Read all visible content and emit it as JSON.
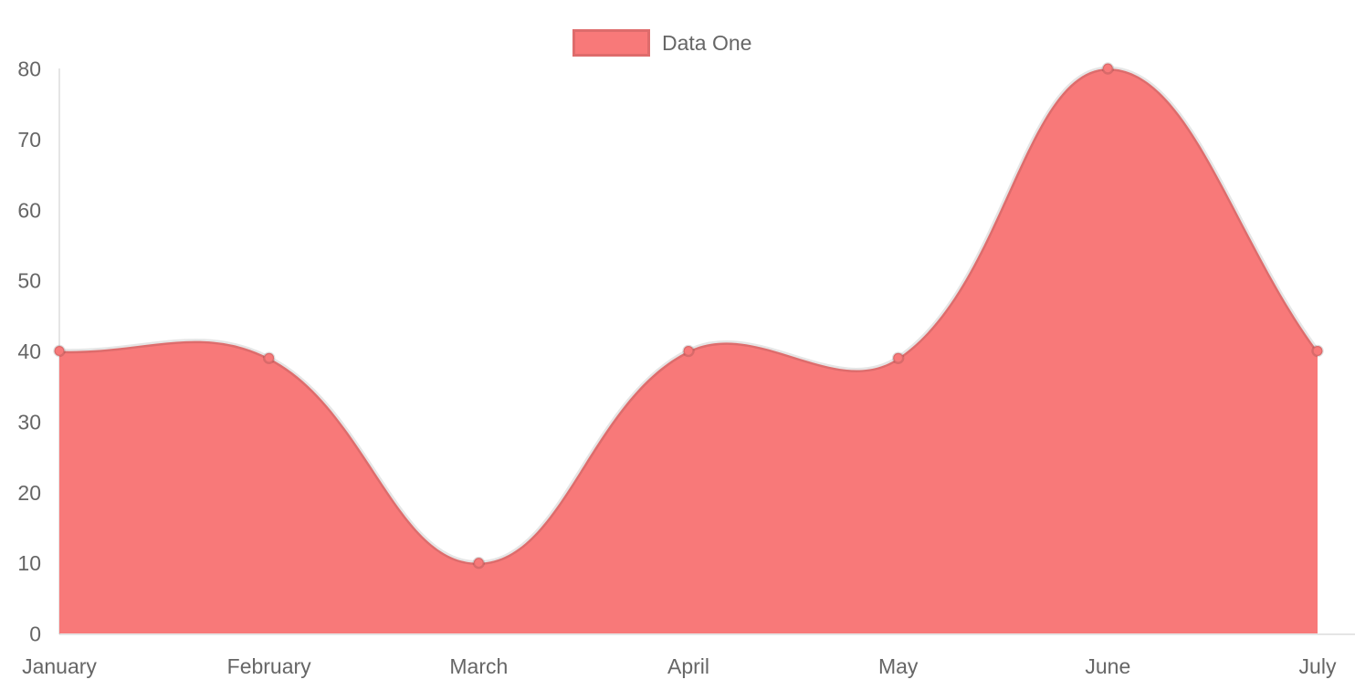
{
  "chart_data": {
    "type": "area",
    "title": "",
    "xlabel": "",
    "ylabel": "",
    "categories": [
      "January",
      "February",
      "March",
      "April",
      "May",
      "June",
      "July"
    ],
    "series": [
      {
        "name": "Data One",
        "values": [
          40,
          39,
          10,
          40,
          39,
          80,
          40
        ]
      }
    ],
    "ylim": [
      0,
      80
    ],
    "y_ticks": [
      0,
      10,
      20,
      30,
      40,
      50,
      60,
      70,
      80
    ],
    "grid": false,
    "legend_position": "top",
    "line_tension": 0.4,
    "colors": {
      "fill": "#f87979",
      "line": "rgba(0,0,0,0.1)",
      "point_fill": "#f87979",
      "point_border": "rgba(0,0,0,0.12)",
      "axis_line": "rgba(0,0,0,0.1)",
      "tick_text": "#666666",
      "legend_text": "#666666"
    }
  }
}
